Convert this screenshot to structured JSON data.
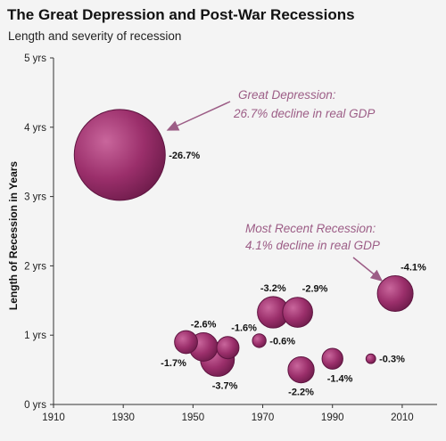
{
  "header": {
    "title": "The Great Depression and Post-War Recessions",
    "subtitle": "Length and severity of recession"
  },
  "chart_data": {
    "type": "scatter",
    "title": "The Great Depression and Post-War Recessions",
    "subtitle": "Length and severity of recession",
    "xlabel": "",
    "ylabel": "Length of Recession in Years",
    "xlim": [
      1910,
      2020
    ],
    "ylim": [
      0,
      5
    ],
    "x_ticks": [
      "1910",
      "1930",
      "1950",
      "1970",
      "1990",
      "2010"
    ],
    "x_tick_values": [
      1910,
      1930,
      1950,
      1970,
      1990,
      2010
    ],
    "y_ticks": [
      "0 yrs",
      "1 yrs",
      "2 yrs",
      "3 yrs",
      "4 yrs",
      "5 yrs"
    ],
    "y_tick_values": [
      0,
      1,
      2,
      3,
      4,
      5
    ],
    "bubble_color": "#9b2f6b",
    "annotation_color": "#9c5d86",
    "points": [
      {
        "year": 1929,
        "length": 3.6,
        "gdp_decline": 26.7,
        "label": "-26.7%",
        "label_pos": "right"
      },
      {
        "year": 1948,
        "length": 0.9,
        "gdp_decline": 1.7,
        "label": "-1.7%",
        "label_pos": "below-left"
      },
      {
        "year": 1953,
        "length": 0.83,
        "gdp_decline": 2.6,
        "label": "-2.6%",
        "label_pos": "above"
      },
      {
        "year": 1957,
        "length": 0.65,
        "gdp_decline": 3.7,
        "label": "-3.7%",
        "label_pos": "below-right"
      },
      {
        "year": 1960,
        "length": 0.82,
        "gdp_decline": 1.6,
        "label": "-1.6%",
        "label_pos": "above-right"
      },
      {
        "year": 1969,
        "length": 0.92,
        "gdp_decline": 0.6,
        "label": "-0.6%",
        "label_pos": "right"
      },
      {
        "year": 1973,
        "length": 1.33,
        "gdp_decline": 3.2,
        "label": "-3.2%",
        "label_pos": "above"
      },
      {
        "year": 1980,
        "length": 1.33,
        "gdp_decline": 2.9,
        "label": "-2.9%",
        "label_pos": "above-right"
      },
      {
        "year": 1981,
        "length": 0.5,
        "gdp_decline": 2.2,
        "label": "-2.2%",
        "label_pos": "below"
      },
      {
        "year": 1990,
        "length": 0.66,
        "gdp_decline": 1.4,
        "label": "-1.4%",
        "label_pos": "below-right"
      },
      {
        "year": 2001,
        "length": 0.66,
        "gdp_decline": 0.3,
        "label": "-0.3%",
        "label_pos": "right"
      },
      {
        "year": 2008,
        "length": 1.6,
        "gdp_decline": 4.1,
        "label": "-4.1%",
        "label_pos": "above-right"
      }
    ],
    "annotations": [
      {
        "lines": [
          "Great Depression:",
          "26.7% decline in real GDP"
        ],
        "points_to_year": 1929,
        "points_to_length": 3.6
      },
      {
        "lines": [
          "Most Recent Recession:",
          "4.1% decline in real GDP"
        ],
        "points_to_year": 2008,
        "points_to_length": 1.6
      }
    ],
    "grid": false,
    "legend": "none"
  }
}
